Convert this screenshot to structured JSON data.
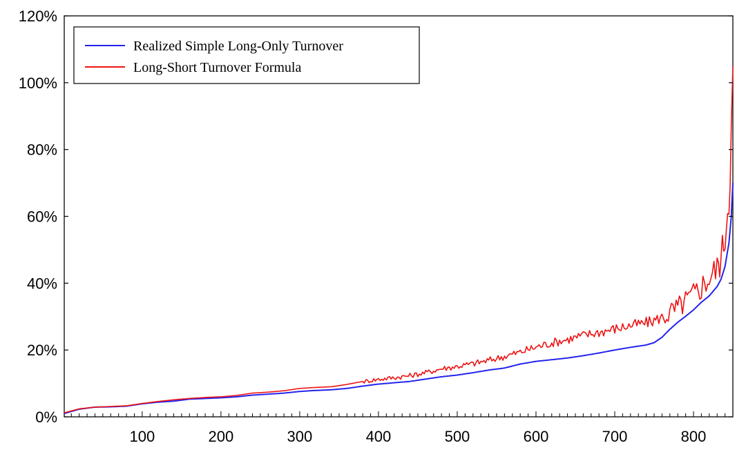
{
  "chart_data": {
    "type": "line",
    "title": "",
    "xlabel": "",
    "ylabel": "",
    "xlim": [
      1,
      850
    ],
    "ylim": [
      0,
      120
    ],
    "x_ticks": [
      100,
      200,
      300,
      400,
      500,
      600,
      700,
      800
    ],
    "x_tick_labels": [
      "100",
      "200",
      "300",
      "400",
      "500",
      "600",
      "700",
      "800"
    ],
    "y_ticks": [
      0,
      20,
      40,
      60,
      80,
      100,
      120
    ],
    "y_tick_labels": [
      "0%",
      "20%",
      "40%",
      "60%",
      "80%",
      "100%",
      "120%"
    ],
    "grid": false,
    "legend_position": "top-left",
    "series": [
      {
        "name": "Realized Simple Long-Only Turnover",
        "color": "#2222ee",
        "x": [
          1,
          20,
          40,
          60,
          80,
          100,
          120,
          140,
          160,
          180,
          200,
          220,
          240,
          260,
          280,
          300,
          320,
          340,
          360,
          380,
          400,
          420,
          440,
          460,
          480,
          500,
          520,
          540,
          560,
          580,
          600,
          620,
          640,
          660,
          680,
          700,
          720,
          740,
          750,
          760,
          770,
          780,
          790,
          800,
          810,
          820,
          830,
          835,
          840,
          845,
          848,
          850
        ],
        "values": [
          1.0,
          2.3,
          2.9,
          3.0,
          3.2,
          3.9,
          4.4,
          4.7,
          5.3,
          5.5,
          5.7,
          6.0,
          6.5,
          6.8,
          7.1,
          7.6,
          7.9,
          8.1,
          8.5,
          9.2,
          9.8,
          10.2,
          10.6,
          11.3,
          12.0,
          12.5,
          13.2,
          14.0,
          14.6,
          15.8,
          16.6,
          17.1,
          17.6,
          18.3,
          19.1,
          20.0,
          20.8,
          21.5,
          22.2,
          23.8,
          26.2,
          28.3,
          30.1,
          32.0,
          34.3,
          36.2,
          39.0,
          41.2,
          45.0,
          52.0,
          60.0,
          70.0
        ]
      },
      {
        "name": "Long-Short Turnover Formula",
        "color": "#ee1111",
        "x": [
          1,
          20,
          40,
          60,
          80,
          100,
          120,
          140,
          160,
          180,
          200,
          220,
          240,
          260,
          280,
          300,
          320,
          340,
          360,
          380,
          400,
          420,
          440,
          460,
          480,
          500,
          520,
          540,
          560,
          580,
          600,
          620,
          640,
          660,
          680,
          700,
          720,
          740,
          750,
          760,
          770,
          780,
          790,
          800,
          810,
          820,
          830,
          835,
          840,
          845,
          848,
          850
        ],
        "values": [
          1.2,
          2.4,
          2.9,
          3.1,
          3.3,
          4.0,
          4.6,
          5.1,
          5.5,
          5.8,
          6.0,
          6.4,
          7.1,
          7.4,
          7.8,
          8.5,
          8.8,
          9.0,
          9.7,
          10.6,
          11.3,
          11.8,
          12.4,
          13.3,
          14.5,
          15.2,
          16.0,
          17.0,
          18.2,
          19.5,
          21.0,
          22.3,
          23.3,
          24.5,
          25.5,
          26.5,
          27.5,
          28.3,
          29.0,
          30.0,
          31.5,
          33.0,
          35.0,
          37.0,
          39.5,
          42.0,
          45.0,
          48.0,
          55.0,
          68.0,
          85.0,
          105.0
        ]
      }
    ]
  }
}
